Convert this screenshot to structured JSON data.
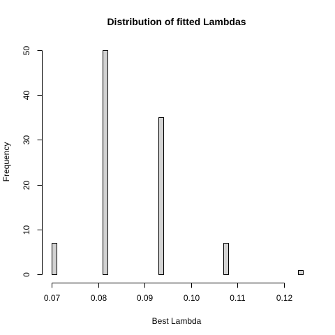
{
  "chart_data": {
    "type": "bar",
    "title": "Distribution of fitted Lambdas",
    "xlabel": "Best Lambda",
    "ylabel": "Frequency",
    "bar_color": "#d3d3d3",
    "border_color": "#000000",
    "bin_width": 0.001,
    "x_ticks": [
      0.07,
      0.08,
      0.09,
      0.1,
      0.11,
      0.12
    ],
    "x_tick_labels": [
      "0.07",
      "0.08",
      "0.09",
      "0.10",
      "0.11",
      "0.12"
    ],
    "y_ticks": [
      0,
      10,
      20,
      30,
      40,
      50
    ],
    "y_tick_labels": [
      "0",
      "10",
      "20",
      "30",
      "40",
      "50"
    ],
    "xlim": [
      0.07,
      0.12
    ],
    "ylim": [
      0,
      50
    ],
    "bars": [
      {
        "x0": 0.07,
        "x1": 0.071,
        "count": 7
      },
      {
        "x0": 0.081,
        "x1": 0.082,
        "count": 50
      },
      {
        "x0": 0.093,
        "x1": 0.094,
        "count": 35
      },
      {
        "x0": 0.107,
        "x1": 0.108,
        "count": 7
      },
      {
        "x0": 0.123,
        "x1": 0.124,
        "count": 1
      }
    ],
    "grid": false,
    "legend": "none"
  }
}
